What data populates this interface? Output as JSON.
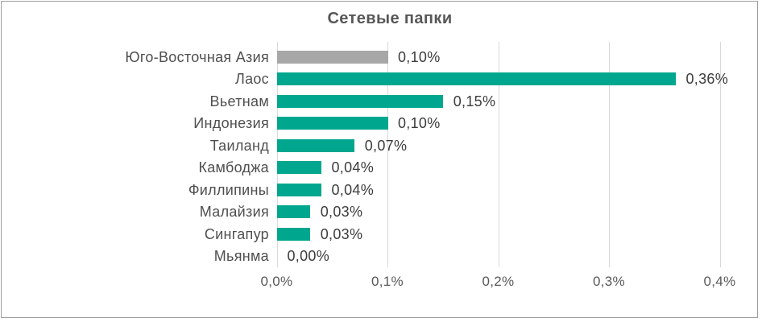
{
  "chart_data": {
    "type": "bar",
    "orientation": "horizontal",
    "title": "Сетевые папки",
    "categories": [
      "Юго-Восточная Азия",
      "Лаос",
      "Вьетнам",
      "Индонезия",
      "Таиланд",
      "Камбоджа",
      "Филлипины",
      "Малайзия",
      "Сингапур",
      "Мьянма"
    ],
    "values": [
      0.1,
      0.36,
      0.15,
      0.1,
      0.07,
      0.04,
      0.04,
      0.03,
      0.03,
      0.0
    ],
    "value_labels": [
      "0,10%",
      "0,36%",
      "0,15%",
      "0,10%",
      "0,07%",
      "0,04%",
      "0,04%",
      "0,03%",
      "0,03%",
      "0,00%"
    ],
    "bar_colors": [
      "#A7A7A7",
      "#00A78E",
      "#00A78E",
      "#00A78E",
      "#00A78E",
      "#00A78E",
      "#00A78E",
      "#00A78E",
      "#00A78E",
      "#00A78E"
    ],
    "x_ticks": [
      "0,0%",
      "0,1%",
      "0,2%",
      "0,3%",
      "0,4%"
    ],
    "x_tick_values": [
      0,
      0.1,
      0.2,
      0.3,
      0.4
    ],
    "xlabel": "",
    "ylabel": "",
    "xlim": [
      0,
      0.4
    ],
    "grid": true,
    "legend": "none",
    "colors": {
      "bar_default": "#00A78E",
      "bar_highlight": "#A7A7A7",
      "title": "#575757",
      "category_label": "#4F4F4F",
      "value_label": "#3C3C3C",
      "axis_label": "#595959",
      "gridline": "#D9D9D9",
      "frame_border": "#9E9E9E",
      "background": "#FFFFFF"
    }
  }
}
